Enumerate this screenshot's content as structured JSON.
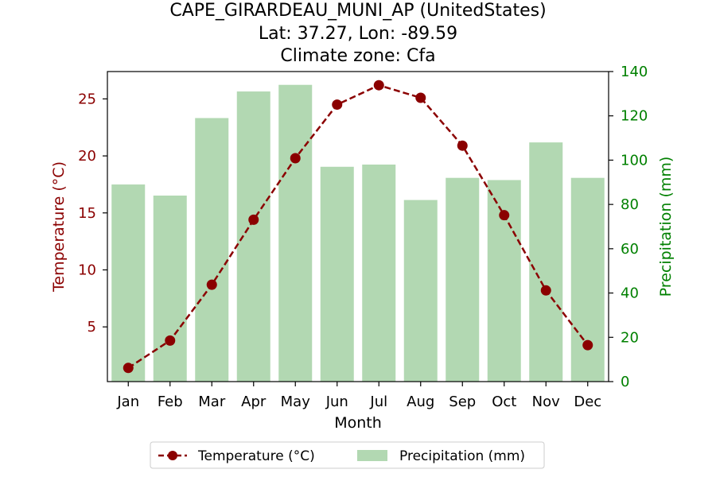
{
  "chart_data": {
    "type": "bar+line",
    "title_lines": [
      "CAPE_GIRARDEAU_MUNI_AP (UnitedStates)",
      "Lat: 37.27, Lon: -89.59",
      "Climate zone: Cfa"
    ],
    "xlabel": "Month",
    "ylabel_left": "Temperature (°C)",
    "ylabel_right": "Precipitation (mm)",
    "categories": [
      "Jan",
      "Feb",
      "Mar",
      "Apr",
      "May",
      "Jun",
      "Jul",
      "Aug",
      "Sep",
      "Oct",
      "Nov",
      "Dec"
    ],
    "temperature": {
      "name": "Temperature (°C)",
      "values": [
        1.4,
        3.8,
        8.7,
        14.4,
        19.8,
        24.5,
        26.2,
        25.1,
        20.9,
        14.8,
        8.2,
        3.4
      ],
      "ylim": [
        0.2,
        27.4
      ],
      "ticks": [
        5,
        10,
        15,
        20,
        25
      ],
      "color": "#8b0000"
    },
    "precipitation": {
      "name": "Precipitation (mm)",
      "values": [
        89,
        84,
        119,
        131,
        134,
        97,
        98,
        82,
        92,
        91,
        108,
        92
      ],
      "ylim": [
        0,
        140
      ],
      "ticks": [
        0,
        20,
        40,
        60,
        80,
        100,
        120,
        140
      ],
      "color": "#b2d8b2"
    },
    "grid": false,
    "legend_position": "bottom-center"
  }
}
